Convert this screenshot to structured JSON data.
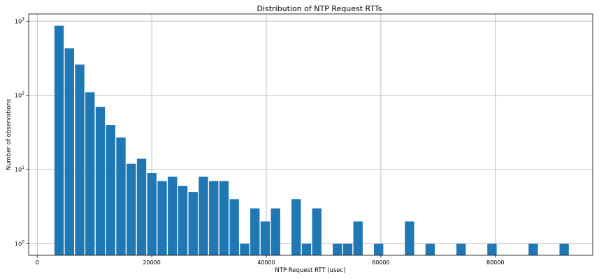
{
  "chart_data": {
    "type": "bar",
    "subtype": "histogram",
    "title": "Distribution of NTP Request RTTs",
    "xlabel": "NTP Request RTT (usec)",
    "ylabel": "Number of observations",
    "yscale": "log",
    "xlim": [
      -1500,
      97000
    ],
    "ylim": [
      0.7,
      1250
    ],
    "grid": true,
    "color": "#1f77b4",
    "xticks": [
      {
        "value": 0,
        "label": "0"
      },
      {
        "value": 20000,
        "label": "20000"
      },
      {
        "value": 40000,
        "label": "40000"
      },
      {
        "value": 60000,
        "label": "60000"
      },
      {
        "value": 80000,
        "label": "80000"
      }
    ],
    "yticks": [
      {
        "value": 1,
        "base": "10",
        "exp": "0"
      },
      {
        "value": 10,
        "base": "10",
        "exp": "1"
      },
      {
        "value": 100,
        "base": "10",
        "exp": "2"
      },
      {
        "value": 1000,
        "base": "10",
        "exp": "3"
      }
    ],
    "bins": [
      {
        "x0": 3000,
        "x1": 4800,
        "count": 870
      },
      {
        "x0": 4800,
        "x1": 6600,
        "count": 430
      },
      {
        "x0": 6600,
        "x1": 8400,
        "count": 260
      },
      {
        "x0": 8400,
        "x1": 10200,
        "count": 110
      },
      {
        "x0": 10200,
        "x1": 12000,
        "count": 70
      },
      {
        "x0": 12000,
        "x1": 13800,
        "count": 40
      },
      {
        "x0": 13800,
        "x1": 15600,
        "count": 27
      },
      {
        "x0": 15600,
        "x1": 17400,
        "count": 12
      },
      {
        "x0": 17400,
        "x1": 19200,
        "count": 14
      },
      {
        "x0": 19200,
        "x1": 21000,
        "count": 9
      },
      {
        "x0": 21000,
        "x1": 22800,
        "count": 7
      },
      {
        "x0": 22800,
        "x1": 24600,
        "count": 8
      },
      {
        "x0": 24600,
        "x1": 26400,
        "count": 6
      },
      {
        "x0": 26400,
        "x1": 28200,
        "count": 5
      },
      {
        "x0": 28200,
        "x1": 30000,
        "count": 8
      },
      {
        "x0": 30000,
        "x1": 31800,
        "count": 7
      },
      {
        "x0": 31800,
        "x1": 33600,
        "count": 7
      },
      {
        "x0": 33600,
        "x1": 35400,
        "count": 4
      },
      {
        "x0": 35400,
        "x1": 37200,
        "count": 1
      },
      {
        "x0": 37200,
        "x1": 39000,
        "count": 3
      },
      {
        "x0": 39000,
        "x1": 40800,
        "count": 2
      },
      {
        "x0": 40800,
        "x1": 42600,
        "count": 3
      },
      {
        "x0": 44400,
        "x1": 46200,
        "count": 4
      },
      {
        "x0": 46200,
        "x1": 48000,
        "count": 1
      },
      {
        "x0": 48000,
        "x1": 49800,
        "count": 3
      },
      {
        "x0": 51600,
        "x1": 53400,
        "count": 1
      },
      {
        "x0": 53400,
        "x1": 55200,
        "count": 1
      },
      {
        "x0": 55200,
        "x1": 57000,
        "count": 2
      },
      {
        "x0": 58800,
        "x1": 60600,
        "count": 1
      },
      {
        "x0": 64200,
        "x1": 66000,
        "count": 2
      },
      {
        "x0": 67800,
        "x1": 69600,
        "count": 1
      },
      {
        "x0": 73200,
        "x1": 75000,
        "count": 1
      },
      {
        "x0": 78600,
        "x1": 80400,
        "count": 1
      },
      {
        "x0": 85800,
        "x1": 87600,
        "count": 1
      },
      {
        "x0": 91200,
        "x1": 93000,
        "count": 1
      }
    ]
  }
}
